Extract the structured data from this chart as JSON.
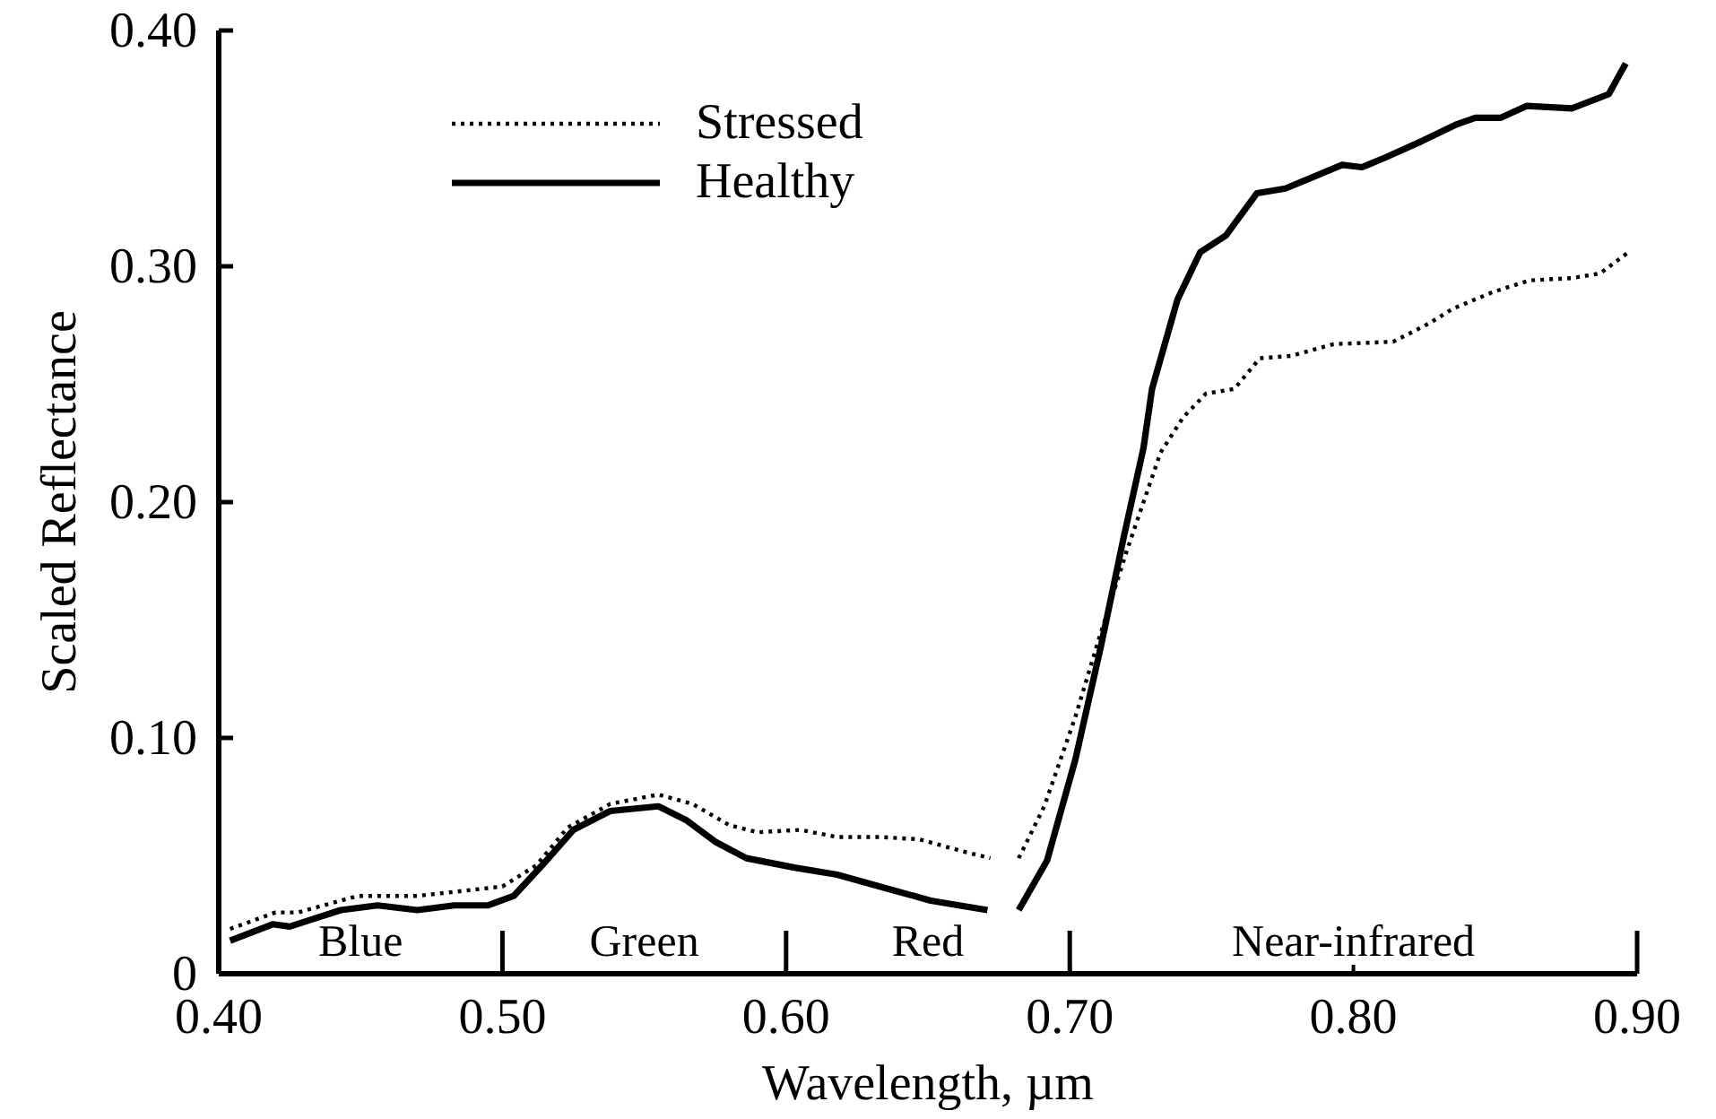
{
  "chart_data": {
    "type": "line",
    "xlabel": "Wavelength, µm",
    "ylabel": "Scaled Reflectance",
    "xlim": [
      0.4,
      0.9
    ],
    "ylim": [
      0,
      0.4
    ],
    "xticks": [
      {
        "value": 0.4,
        "label": "0.40"
      },
      {
        "value": 0.5,
        "label": "0.50"
      },
      {
        "value": 0.6,
        "label": "0.60"
      },
      {
        "value": 0.7,
        "label": "0.70"
      },
      {
        "value": 0.8,
        "label": "0.80"
      },
      {
        "value": 0.9,
        "label": "0.90"
      }
    ],
    "yticks": [
      0,
      {
        "value": 0.1,
        "label": "0.10"
      },
      {
        "value": 0.2,
        "label": "0.20"
      },
      {
        "value": 0.3,
        "label": "0.30"
      },
      {
        "value": 0.4,
        "label": "0.40"
      }
    ],
    "legend": "top left",
    "marker": "none",
    "annotations": [
      "Blue",
      "Green",
      "Red",
      "Near-infrared"
    ],
    "series": [
      {
        "name": "Stressed",
        "color": "#000000",
        "line_style": "dotted",
        "x": [
          0.404,
          0.42,
          0.428,
          0.449,
          0.47,
          0.485,
          0.5,
          0.512,
          0.523,
          0.538,
          0.555,
          0.567,
          0.58,
          0.59,
          0.605,
          0.618,
          0.633,
          0.647,
          0.662,
          0.672,
          0.677,
          0.682,
          0.691,
          0.702,
          0.71,
          0.72,
          0.732,
          0.74,
          0.748,
          0.758,
          0.767,
          0.778,
          0.793,
          0.814,
          0.827,
          0.835,
          0.849,
          0.862,
          0.877,
          0.887,
          0.897
        ],
        "values": [
          0.019,
          0.026,
          0.026,
          0.033,
          0.033,
          0.035,
          0.037,
          0.046,
          0.062,
          0.072,
          0.076,
          0.072,
          0.063,
          0.06,
          0.061,
          0.058,
          0.058,
          0.057,
          0.052,
          0.049,
          null,
          0.049,
          0.071,
          0.109,
          0.141,
          0.179,
          0.221,
          0.236,
          0.246,
          0.248,
          0.261,
          0.262,
          0.267,
          0.268,
          0.276,
          0.282,
          0.289,
          0.294,
          0.295,
          0.297,
          0.306
        ]
      },
      {
        "name": "Healthy",
        "color": "#000000",
        "line_style": "solid",
        "x": [
          0.404,
          0.419,
          0.425,
          0.443,
          0.456,
          0.47,
          0.483,
          0.495,
          0.504,
          0.514,
          0.525,
          0.538,
          0.555,
          0.565,
          0.575,
          0.586,
          0.603,
          0.618,
          0.639,
          0.651,
          0.671,
          0.677,
          0.682,
          0.692,
          0.702,
          0.711,
          0.719,
          0.726,
          0.729,
          0.738,
          0.746,
          0.755,
          0.766,
          0.776,
          0.786,
          0.796,
          0.803,
          0.811,
          0.824,
          0.836,
          0.843,
          0.852,
          0.861,
          0.877,
          0.89,
          0.896
        ],
        "values": [
          0.014,
          0.021,
          0.02,
          0.027,
          0.029,
          0.027,
          0.029,
          0.029,
          0.033,
          0.046,
          0.061,
          0.069,
          0.071,
          0.065,
          0.056,
          0.049,
          0.045,
          0.042,
          0.035,
          0.031,
          0.027,
          null,
          0.027,
          0.048,
          0.091,
          0.139,
          0.185,
          0.223,
          0.248,
          0.286,
          0.306,
          0.313,
          0.331,
          0.333,
          0.338,
          0.343,
          0.342,
          0.346,
          0.353,
          0.36,
          0.363,
          0.363,
          0.368,
          0.367,
          0.373,
          0.386
        ]
      }
    ]
  }
}
